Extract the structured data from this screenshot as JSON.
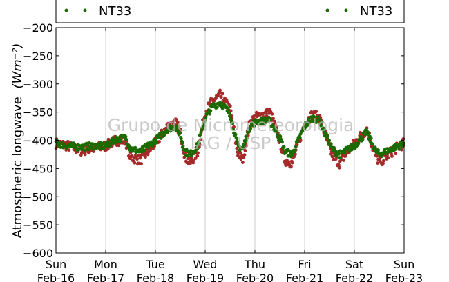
{
  "chart_data": {
    "type": "scatter",
    "title": "",
    "ylabel": "Atmospheric longwave",
    "ylabel_unit": "(Wm⁻²)",
    "ylim": [
      -600,
      -200
    ],
    "yticks": [
      -200,
      -250,
      -300,
      -350,
      -400,
      -450,
      -500,
      -550,
      -600
    ],
    "ytick_labels": [
      "−200",
      "−250",
      "−300",
      "−350",
      "−400",
      "−450",
      "−500",
      "−550",
      "−600"
    ],
    "xlim": [
      "2014-02-16",
      "2014-02-23"
    ],
    "xticks": [
      {
        "day": "Sun",
        "date": "Feb-16"
      },
      {
        "day": "Mon",
        "date": "Feb-17"
      },
      {
        "day": "Tue",
        "date": "Feb-18"
      },
      {
        "day": "Wed",
        "date": "Feb-19"
      },
      {
        "day": "Thu",
        "date": "Feb-20"
      },
      {
        "day": "Fri",
        "date": "Feb-21"
      },
      {
        "day": "Sat",
        "date": "Feb-22"
      },
      {
        "day": "Sun",
        "date": "Feb-23"
      }
    ],
    "grid": "vertical",
    "legend": {
      "placement": "top",
      "entries": [
        {
          "label": "NT33",
          "color": "#1a6b00"
        },
        {
          "label": "NT33",
          "color": "#1a6b00"
        }
      ]
    },
    "watermark": [
      "Grupo de Micrometeorologia",
      "IAG / USP"
    ],
    "series": [
      {
        "color": "#a52a2a",
        "points": [
          [
            0.0,
            -405
          ],
          [
            0.25,
            -410
          ],
          [
            0.5,
            -418
          ],
          [
            0.75,
            -415
          ],
          [
            1.0,
            -410
          ],
          [
            1.2,
            -400
          ],
          [
            1.4,
            -400
          ],
          [
            1.5,
            -430
          ],
          [
            1.7,
            -435
          ],
          [
            2.0,
            -405
          ],
          [
            2.25,
            -375
          ],
          [
            2.4,
            -368
          ],
          [
            2.5,
            -385
          ],
          [
            2.6,
            -430
          ],
          [
            2.7,
            -440
          ],
          [
            2.85,
            -420
          ],
          [
            3.0,
            -350
          ],
          [
            3.15,
            -330
          ],
          [
            3.3,
            -320
          ],
          [
            3.5,
            -345
          ],
          [
            3.65,
            -420
          ],
          [
            3.75,
            -435
          ],
          [
            3.9,
            -370
          ],
          [
            4.0,
            -360
          ],
          [
            4.15,
            -355
          ],
          [
            4.3,
            -350
          ],
          [
            4.5,
            -400
          ],
          [
            4.6,
            -435
          ],
          [
            4.75,
            -440
          ],
          [
            5.0,
            -370
          ],
          [
            5.15,
            -355
          ],
          [
            5.3,
            -360
          ],
          [
            5.45,
            -400
          ],
          [
            5.55,
            -425
          ],
          [
            5.7,
            -440
          ],
          [
            6.0,
            -405
          ],
          [
            6.25,
            -380
          ],
          [
            6.4,
            -420
          ],
          [
            6.5,
            -440
          ],
          [
            6.75,
            -420
          ],
          [
            7.0,
            -405
          ]
        ]
      },
      {
        "color": "#1a6b00",
        "points": [
          [
            0.0,
            -405
          ],
          [
            0.25,
            -410
          ],
          [
            0.5,
            -412
          ],
          [
            0.75,
            -410
          ],
          [
            1.0,
            -410
          ],
          [
            1.2,
            -398
          ],
          [
            1.4,
            -395
          ],
          [
            1.5,
            -415
          ],
          [
            1.7,
            -420
          ],
          [
            2.0,
            -400
          ],
          [
            2.25,
            -380
          ],
          [
            2.4,
            -375
          ],
          [
            2.5,
            -390
          ],
          [
            2.6,
            -420
          ],
          [
            2.7,
            -425
          ],
          [
            2.85,
            -410
          ],
          [
            3.0,
            -360
          ],
          [
            3.15,
            -340
          ],
          [
            3.3,
            -333
          ],
          [
            3.5,
            -352
          ],
          [
            3.65,
            -410
          ],
          [
            3.75,
            -415
          ],
          [
            3.9,
            -375
          ],
          [
            4.0,
            -368
          ],
          [
            4.15,
            -365
          ],
          [
            4.3,
            -365
          ],
          [
            4.5,
            -395
          ],
          [
            4.6,
            -420
          ],
          [
            4.75,
            -425
          ],
          [
            5.0,
            -375
          ],
          [
            5.15,
            -360
          ],
          [
            5.3,
            -365
          ],
          [
            5.45,
            -395
          ],
          [
            5.55,
            -415
          ],
          [
            5.7,
            -425
          ],
          [
            6.0,
            -410
          ],
          [
            6.25,
            -385
          ],
          [
            6.4,
            -415
          ],
          [
            6.5,
            -425
          ],
          [
            6.75,
            -415
          ],
          [
            7.0,
            -405
          ]
        ]
      }
    ]
  }
}
